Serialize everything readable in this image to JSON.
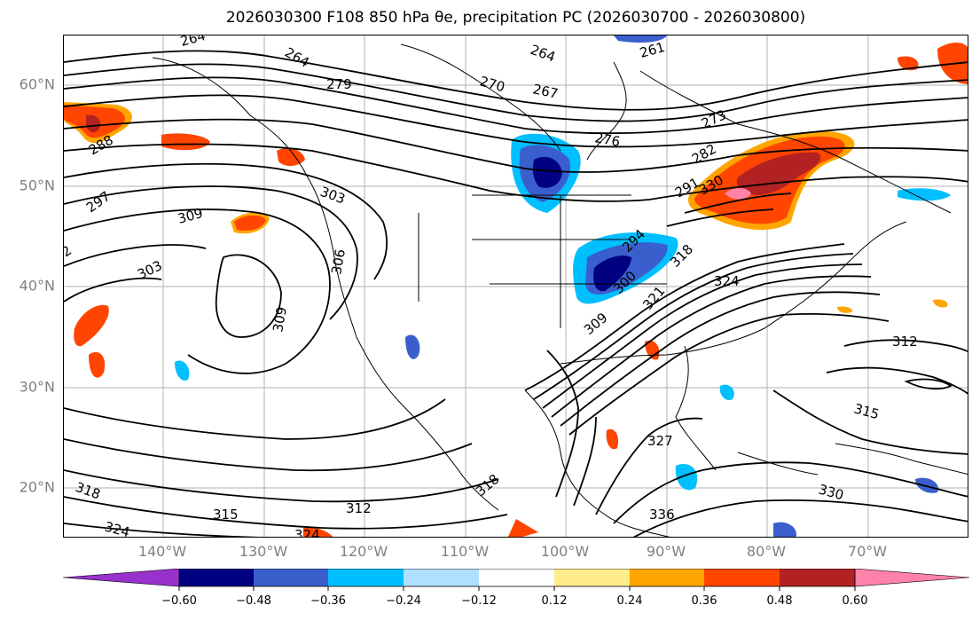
{
  "title": "2026030300 F108 850 hPa θe, precipitation PC (2026030700 - 2026030800)",
  "map": {
    "lat_ticks": [
      "60°N",
      "50°N",
      "40°N",
      "30°N",
      "20°N"
    ],
    "lon_ticks": [
      "140°W",
      "130°W",
      "120°W",
      "110°W",
      "100°W",
      "90°W",
      "80°W",
      "70°W"
    ],
    "contour_labels": [
      "264",
      "264",
      "264",
      "279",
      "270",
      "267",
      "261",
      "276",
      "273",
      "282",
      "288",
      "297",
      "303",
      "309",
      "303",
      "306",
      "309",
      "294",
      "300",
      "309",
      "318",
      "324",
      "312",
      "315",
      "327",
      "321",
      "318",
      "315",
      "312",
      "324",
      "324",
      "318",
      "330",
      "336",
      "330",
      "291",
      "2"
    ],
    "colors": {
      "contour": "#000000",
      "coast": "#000000",
      "grid": "#b0b0b0",
      "pos_strong": "#b22222",
      "pos_mid": "#ff4500",
      "pos_light": "#ffa500",
      "pos_pale": "#ffec8b",
      "neg_pale": "#b0e0ff",
      "neg_light": "#00bfff",
      "neg_mid": "#3a5fcd",
      "neg_strong": "#000080",
      "pink": "#ff82ab"
    }
  },
  "colorbar": {
    "ticks": [
      "−0.60",
      "−0.48",
      "−0.36",
      "−0.24",
      "−0.12",
      "0.12",
      "0.24",
      "0.36",
      "0.48",
      "0.60"
    ],
    "colors": [
      "#9932cc",
      "#000080",
      "#3a5fcd",
      "#00bfff",
      "#b0e0ff",
      "#ffffff",
      "#ffec8b",
      "#ffa500",
      "#ff4500",
      "#b22222",
      "#ff82ab"
    ]
  }
}
